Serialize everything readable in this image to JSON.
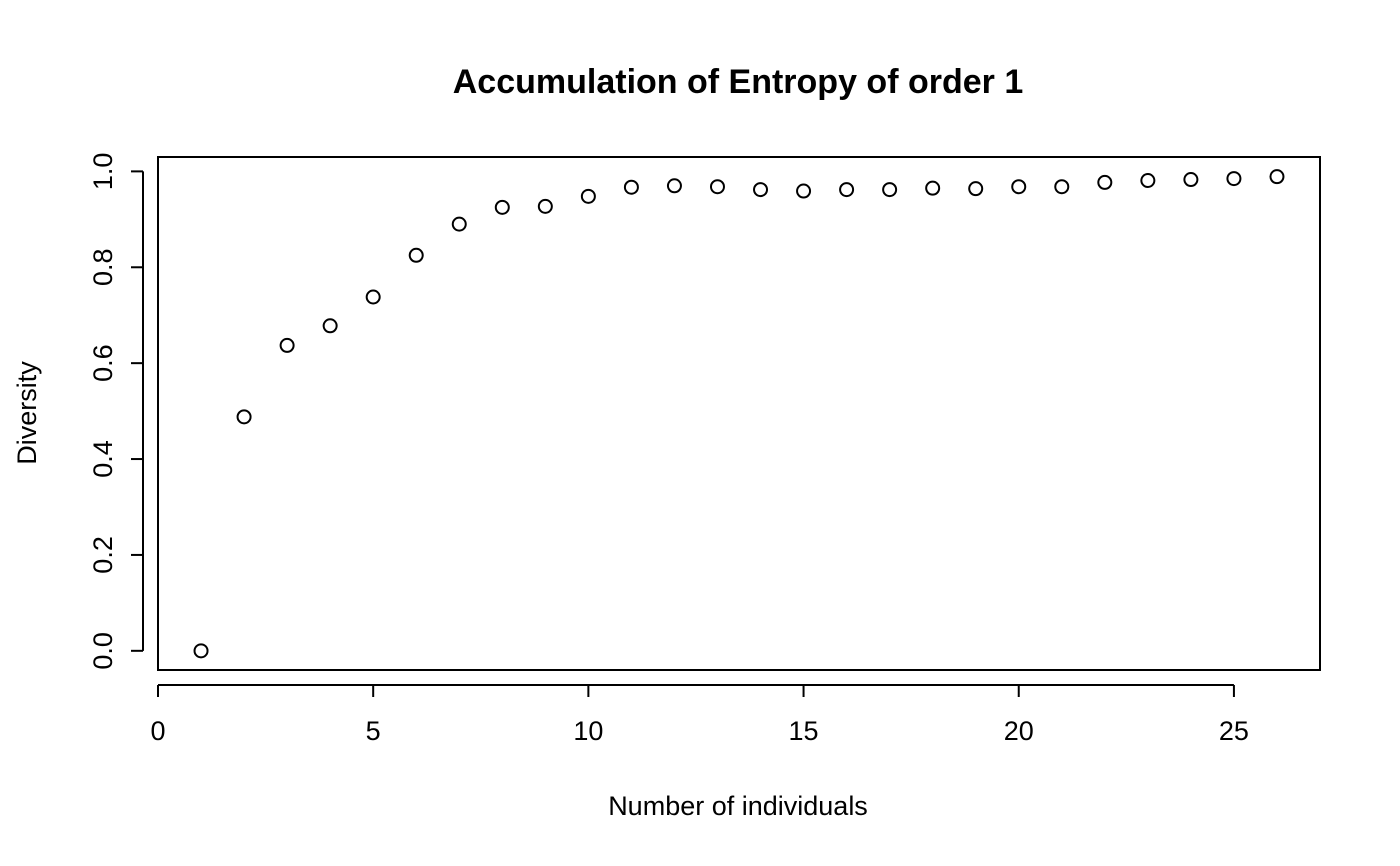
{
  "chart_data": {
    "type": "scatter",
    "title": "Accumulation of Entropy of order 1",
    "xlabel": "Number of individuals",
    "ylabel": "Diversity",
    "xlim": [
      0,
      27
    ],
    "ylim": [
      -0.04,
      1.03
    ],
    "x_ticks": [
      0,
      5,
      10,
      15,
      20,
      25
    ],
    "x_tick_labels": [
      "0",
      "5",
      "10",
      "15",
      "20",
      "25"
    ],
    "y_ticks": [
      0.0,
      0.2,
      0.4,
      0.6,
      0.8,
      1.0
    ],
    "y_tick_labels": [
      "0.0",
      "0.2",
      "0.4",
      "0.6",
      "0.8",
      "1.0"
    ],
    "grid": false,
    "marker": "open-circle",
    "color": "#000000",
    "x": [
      1,
      2,
      3,
      4,
      5,
      6,
      7,
      8,
      9,
      10,
      11,
      12,
      13,
      14,
      15,
      16,
      17,
      18,
      19,
      20,
      21,
      22,
      23,
      24,
      25,
      26
    ],
    "y": [
      0.0,
      0.488,
      0.637,
      0.678,
      0.738,
      0.825,
      0.89,
      0.925,
      0.927,
      0.948,
      0.967,
      0.97,
      0.968,
      0.962,
      0.959,
      0.962,
      0.962,
      0.965,
      0.964,
      0.968,
      0.968,
      0.977,
      0.981,
      0.983,
      0.985,
      0.989
    ]
  }
}
